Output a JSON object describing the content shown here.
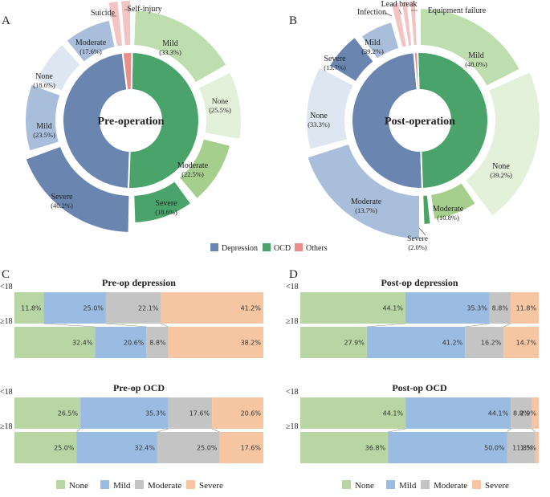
{
  "colors": {
    "depression": "#6a86b0",
    "ocd": "#4aa36a",
    "others": "#e98d8d",
    "none": "#b7d6a3",
    "mild": "#9bbce2",
    "moderate": "#c4c4c4",
    "severe": "#f6c6a3"
  },
  "chart_data": [
    {
      "panel": "A",
      "type": "pie",
      "center_title": "Pre-operation",
      "inner": [
        {
          "name": "Depression",
          "value": 68
        },
        {
          "name": "OCD",
          "value": 68
        },
        {
          "name": "Others",
          "value": 2
        }
      ],
      "outer": [
        {
          "group": "OCD",
          "name": "Mild",
          "pct": "(33.3%)",
          "value": 33.3
        },
        {
          "group": "OCD",
          "name": "None",
          "pct": "(25.5%)",
          "value": 25.5
        },
        {
          "group": "OCD",
          "name": "Moderate",
          "pct": "(22.5%)",
          "value": 22.5
        },
        {
          "group": "OCD",
          "name": "Severe",
          "pct": "(18.6%)",
          "value": 18.6
        },
        {
          "group": "Depression",
          "name": "Severe",
          "pct": "(40.2%)",
          "value": 40.2
        },
        {
          "group": "Depression",
          "name": "Mild",
          "pct": "(23.5%)",
          "value": 23.5
        },
        {
          "group": "Depression",
          "name": "None",
          "pct": "(18.6%)",
          "value": 18.6
        },
        {
          "group": "Depression",
          "name": "Moderate",
          "pct": "(17.6%)",
          "value": 17.6
        },
        {
          "group": "Others",
          "name": "Suicide",
          "pct": "",
          "value": 1
        },
        {
          "group": "Others",
          "name": "Self-injury",
          "pct": "",
          "value": 1
        }
      ]
    },
    {
      "panel": "B",
      "type": "pie",
      "center_title": "Post-operation",
      "inner": [
        {
          "name": "Depression",
          "value": 68
        },
        {
          "name": "OCD",
          "value": 68
        },
        {
          "name": "Others",
          "value": 3
        }
      ],
      "outer": [
        {
          "group": "OCD",
          "name": "Mild",
          "pct": "(48.0%)",
          "value": 48.0
        },
        {
          "group": "OCD",
          "name": "None",
          "pct": "(39.2%)",
          "value": 39.2
        },
        {
          "group": "OCD",
          "name": "Moderate",
          "pct": "(10.8%)",
          "value": 10.8
        },
        {
          "group": "OCD",
          "name": "Severe",
          "pct": "(2.0%)",
          "value": 2.0
        },
        {
          "group": "Depression",
          "name": "Moderate",
          "pct": "(13.7%)",
          "value": 13.7
        },
        {
          "group": "Depression",
          "name": "None",
          "pct": "(33.3%)",
          "value": 33.3
        },
        {
          "group": "Depression",
          "name": "Severe",
          "pct": "(13.7%)",
          "value": 13.7
        },
        {
          "group": "Depression",
          "name": "Mild",
          "pct": "(39.2%)",
          "value": 39.2
        },
        {
          "group": "Others",
          "name": "Infection",
          "pct": "",
          "value": 1
        },
        {
          "group": "Others",
          "name": "Lead break",
          "pct": "",
          "value": 1
        },
        {
          "group": "Others",
          "name": "Equipment failure",
          "pct": "",
          "value": 1
        }
      ]
    },
    {
      "panel": "C",
      "type": "bar",
      "stacked": true,
      "orientation": "horizontal",
      "charts": [
        {
          "title": "Pre-op depression",
          "rows": [
            {
              "label": "<18",
              "values": [
                11.8,
                25.0,
                22.1,
                41.2
              ],
              "labels": [
                "11.8%",
                "25.0%",
                "22.1%",
                "41.2%"
              ]
            },
            {
              "label": "≥18",
              "values": [
                32.4,
                20.6,
                8.8,
                38.2
              ],
              "labels": [
                "32.4%",
                "20.6%",
                "8.8%",
                "38.2%"
              ]
            }
          ]
        },
        {
          "title": "Pre-op OCD",
          "rows": [
            {
              "label": "<18",
              "values": [
                26.5,
                35.3,
                17.6,
                20.6
              ],
              "labels": [
                "26.5%",
                "35.3%",
                "17.6%",
                "20.6%"
              ]
            },
            {
              "label": "≥18",
              "values": [
                25.0,
                32.4,
                25.0,
                17.6
              ],
              "labels": [
                "25.0%",
                "32.4%",
                "25.0%",
                "17.6%"
              ]
            }
          ]
        }
      ]
    },
    {
      "panel": "D",
      "type": "bar",
      "stacked": true,
      "orientation": "horizontal",
      "charts": [
        {
          "title": "Post-op depression",
          "rows": [
            {
              "label": "<18",
              "values": [
                44.1,
                35.3,
                8.8,
                11.8
              ],
              "labels": [
                "44.1%",
                "35.3%",
                "8.8%",
                "11.8%"
              ]
            },
            {
              "label": "≥18",
              "values": [
                27.9,
                41.2,
                16.2,
                14.7
              ],
              "labels": [
                "27.9%",
                "41.2%",
                "16.2%",
                "14.7%"
              ]
            }
          ]
        },
        {
          "title": "Post-op OCD",
          "rows": [
            {
              "label": "<18",
              "values": [
                44.1,
                44.1,
                8.8,
                2.9
              ],
              "labels": [
                "44.1%",
                "44.1%",
                "8.8%",
                "2.9%"
              ]
            },
            {
              "label": "≥18",
              "values": [
                36.8,
                50.0,
                11.8,
                1.5
              ],
              "labels": [
                "36.8%",
                "50.0%",
                "11.8%",
                "1.5%"
              ]
            }
          ]
        }
      ]
    }
  ],
  "legend_top": [
    "Depression",
    "OCD",
    "Others"
  ],
  "legend_bottom": [
    "None",
    "Mild",
    "Moderate",
    "Severe"
  ],
  "panel_letters": [
    "A",
    "B",
    "C",
    "D"
  ]
}
